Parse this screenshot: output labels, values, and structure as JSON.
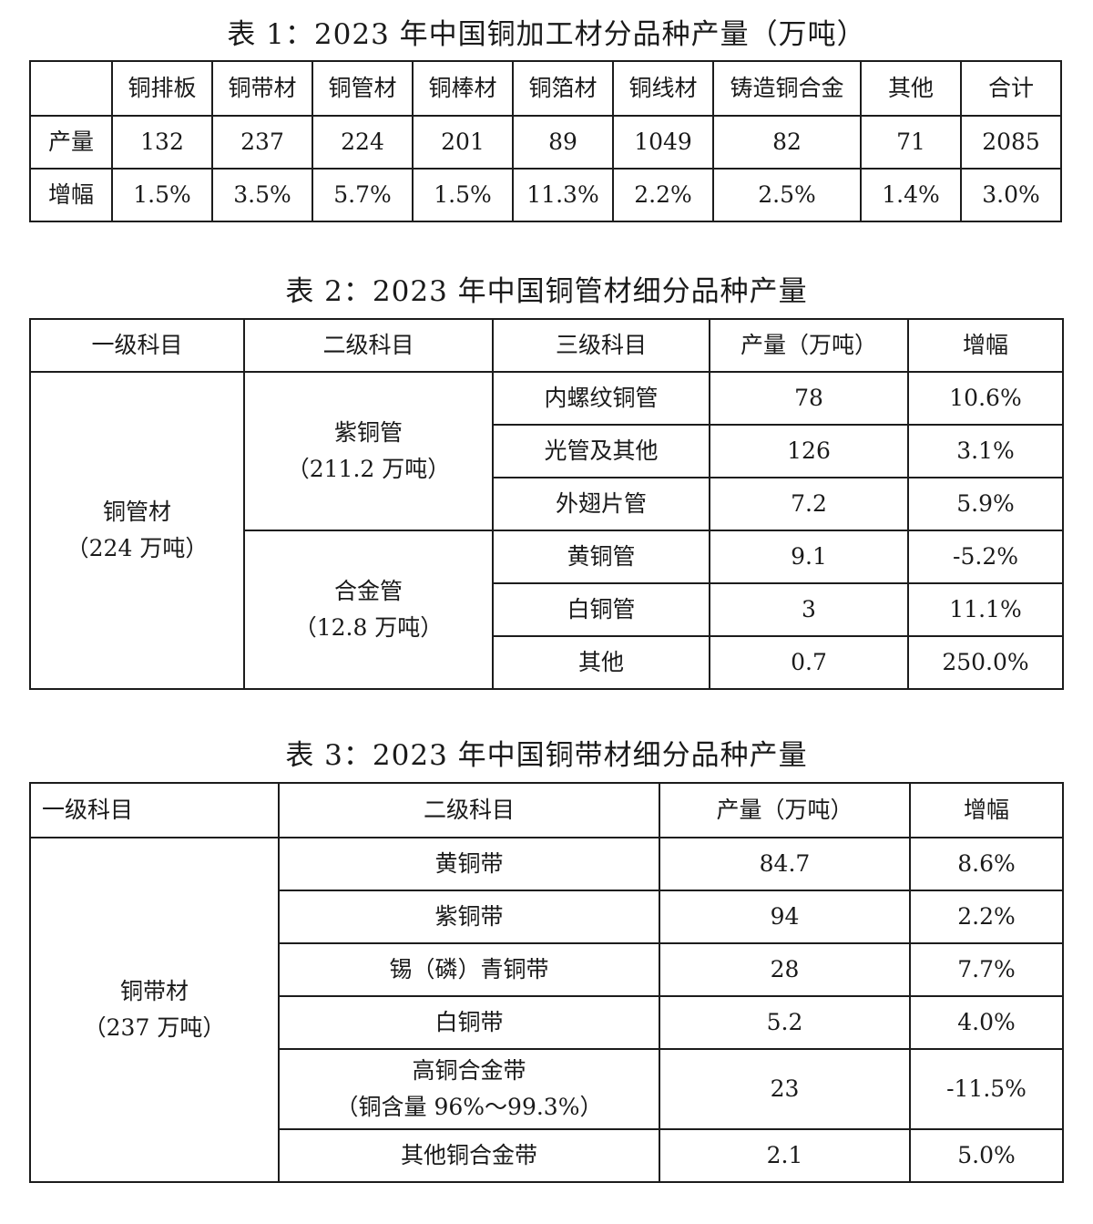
{
  "table1": {
    "caption": "表 1：2023 年中国铜加工材分品种产量（万吨）",
    "headers": [
      "",
      "铜排板",
      "铜带材",
      "铜管材",
      "铜棒材",
      "铜箔材",
      "铜线材",
      "铸造铜合金",
      "其他",
      "合计"
    ],
    "rows": [
      [
        "产量",
        "132",
        "237",
        "224",
        "201",
        "89",
        "1049",
        "82",
        "71",
        "2085"
      ],
      [
        "增幅",
        "1.5%",
        "3.5%",
        "5.7%",
        "1.5%",
        "11.3%",
        "2.2%",
        "2.5%",
        "1.4%",
        "3.0%"
      ]
    ]
  },
  "table2": {
    "caption": "表 2：2023 年中国铜管材细分品种产量",
    "headers": [
      "一级科目",
      "二级科目",
      "三级科目",
      "产量（万吨）",
      "增幅"
    ],
    "level1": {
      "name": "铜管材",
      "total": "（224 万吨）"
    },
    "groups": [
      {
        "name": "紫铜管",
        "total": "（211.2 万吨）"
      },
      {
        "name": "合金管",
        "total": "（12.8 万吨）"
      }
    ],
    "rows": [
      [
        "内螺纹铜管",
        "78",
        "10.6%"
      ],
      [
        "光管及其他",
        "126",
        "3.1%"
      ],
      [
        "外翅片管",
        "7.2",
        "5.9%"
      ],
      [
        "黄铜管",
        "9.1",
        "-5.2%"
      ],
      [
        "白铜管",
        "3",
        "11.1%"
      ],
      [
        "其他",
        "0.7",
        "250.0%"
      ]
    ]
  },
  "table3": {
    "caption": "表 3：2023 年中国铜带材细分品种产量",
    "headers": [
      "一级科目",
      "二级科目",
      "产量（万吨）",
      "增幅"
    ],
    "level1": {
      "name": "铜带材",
      "total": "（237 万吨）"
    },
    "rows": [
      {
        "name": "黄铜带",
        "qty": "84.7",
        "growth": "8.6%"
      },
      {
        "name": "紫铜带",
        "qty": "94",
        "growth": "2.2%"
      },
      {
        "name": "锡（磷）青铜带",
        "qty": "28",
        "growth": "7.7%"
      },
      {
        "name": "白铜带",
        "qty": "5.2",
        "growth": "4.0%"
      },
      {
        "name": "高铜合金带",
        "note": "（铜含量 96%～99.3%）",
        "qty": "23",
        "growth": "-11.5%"
      },
      {
        "name": "其他铜合金带",
        "qty": "2.1",
        "growth": "5.0%"
      }
    ]
  }
}
